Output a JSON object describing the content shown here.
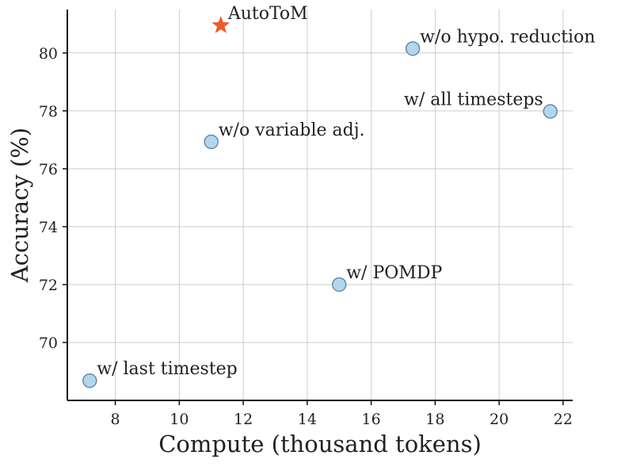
{
  "chart_data": {
    "type": "scatter",
    "title": "",
    "xlabel": "Compute (thousand tokens)",
    "ylabel": "Accuracy (%)",
    "xlim": [
      6.5,
      22.3
    ],
    "ylim": [
      68.0,
      81.5
    ],
    "xticks": [
      8,
      10,
      12,
      14,
      16,
      18,
      20,
      22
    ],
    "yticks": [
      70,
      72,
      74,
      76,
      78,
      80
    ],
    "grid": true,
    "points": [
      {
        "label": "AutoToM",
        "x": 11.3,
        "y": 80.95,
        "marker": "star",
        "color": "#f05a28",
        "label_anchor": "start"
      },
      {
        "label": "w/o hypo. reduction",
        "x": 17.3,
        "y": 80.15,
        "marker": "circle",
        "color": "#b3d6ea",
        "label_anchor": "start"
      },
      {
        "label": "w/ all timesteps",
        "x": 21.6,
        "y": 77.98,
        "marker": "circle",
        "color": "#b3d6ea",
        "label_anchor": "end"
      },
      {
        "label": "w/o variable adj.",
        "x": 11.0,
        "y": 76.93,
        "marker": "circle",
        "color": "#b3d6ea",
        "label_anchor": "start"
      },
      {
        "label": "w/ POMDP",
        "x": 15.0,
        "y": 72.0,
        "marker": "circle",
        "color": "#b3d6ea",
        "label_anchor": "start"
      },
      {
        "label": "w/ last timestep",
        "x": 7.2,
        "y": 68.68,
        "marker": "circle",
        "color": "#b3d6ea",
        "label_anchor": "start"
      }
    ],
    "circle_edge_color": "#5a86ad"
  }
}
